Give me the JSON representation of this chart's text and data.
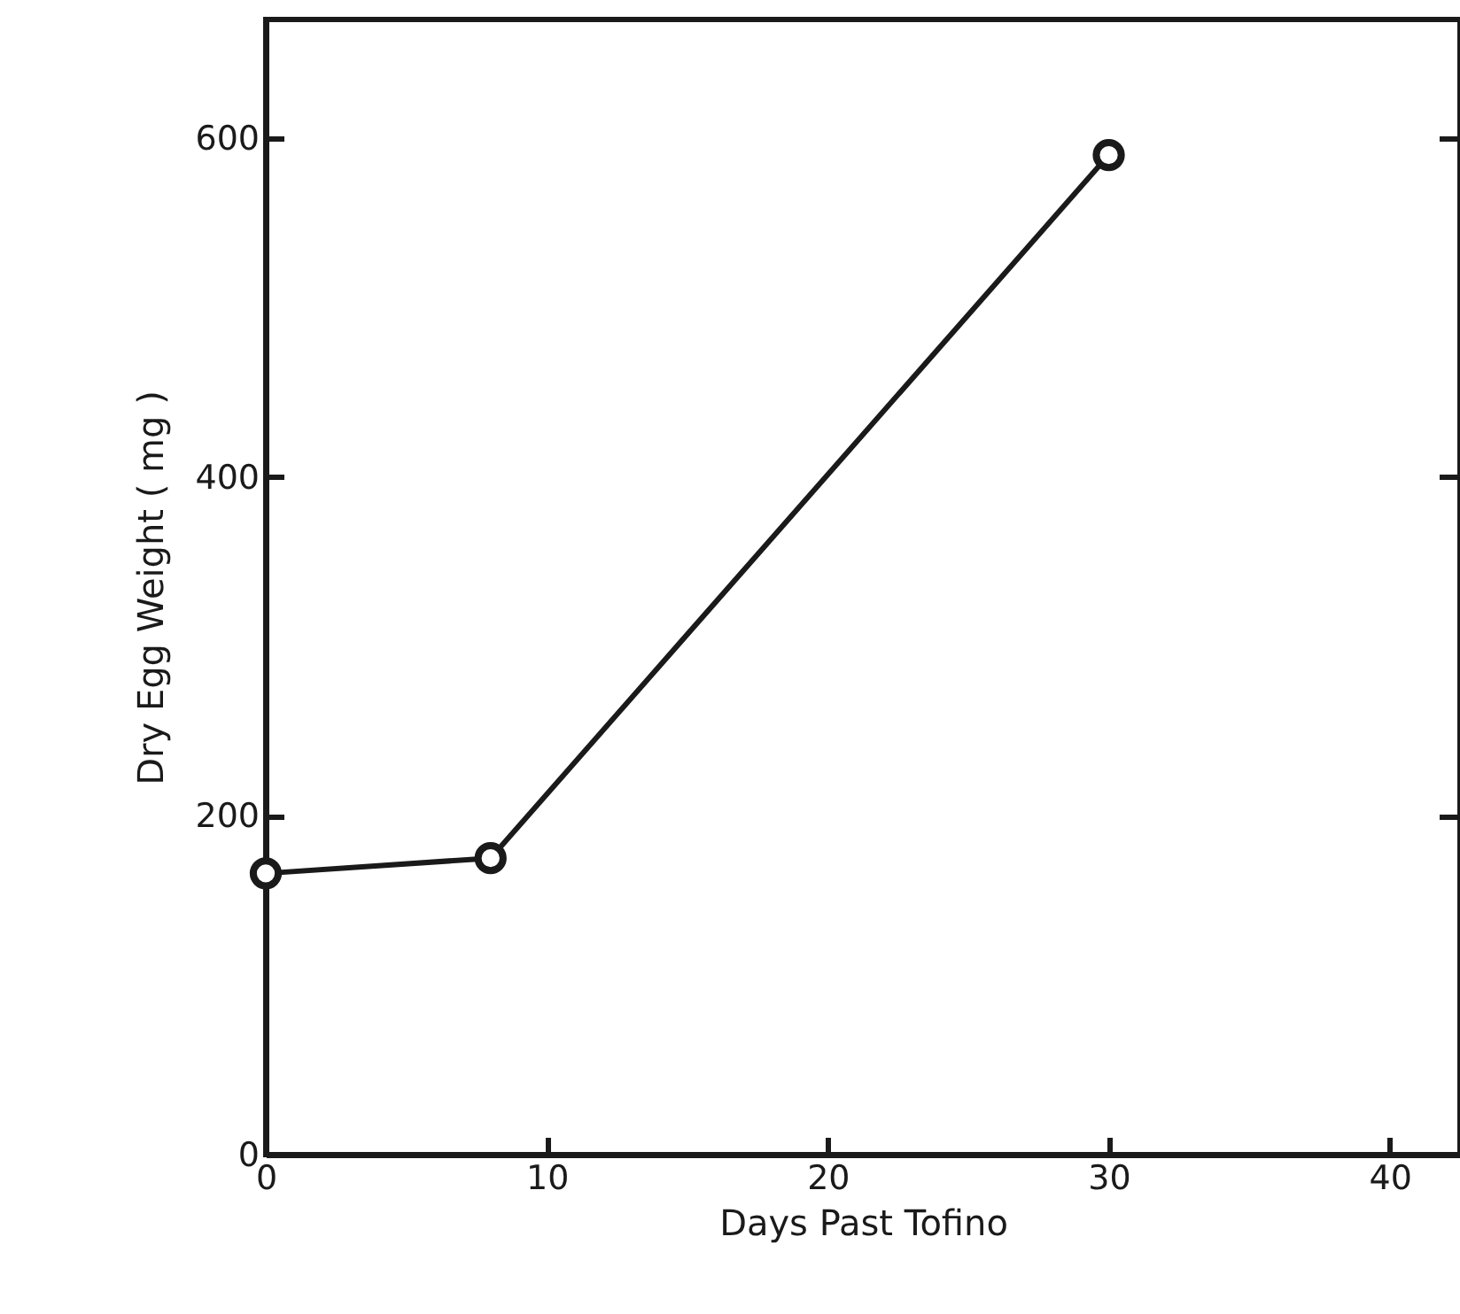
{
  "chart_data": {
    "type": "line",
    "xlabel": "Days  Past  Tofino",
    "ylabel": "Dry Egg Weight ( mg )",
    "x": [
      0,
      8,
      30
    ],
    "series": [
      {
        "color": "#1a1a1a",
        "values": [
          166,
          175,
          590
        ]
      }
    ],
    "xlim": [
      0,
      42.5
    ],
    "xticks": [
      0,
      10,
      20,
      30,
      40
    ],
    "ylim": [
      0,
      670
    ],
    "yticks": [
      0,
      200,
      400,
      600
    ],
    "marker": "circle",
    "line_style": "solid",
    "grid": false
  }
}
